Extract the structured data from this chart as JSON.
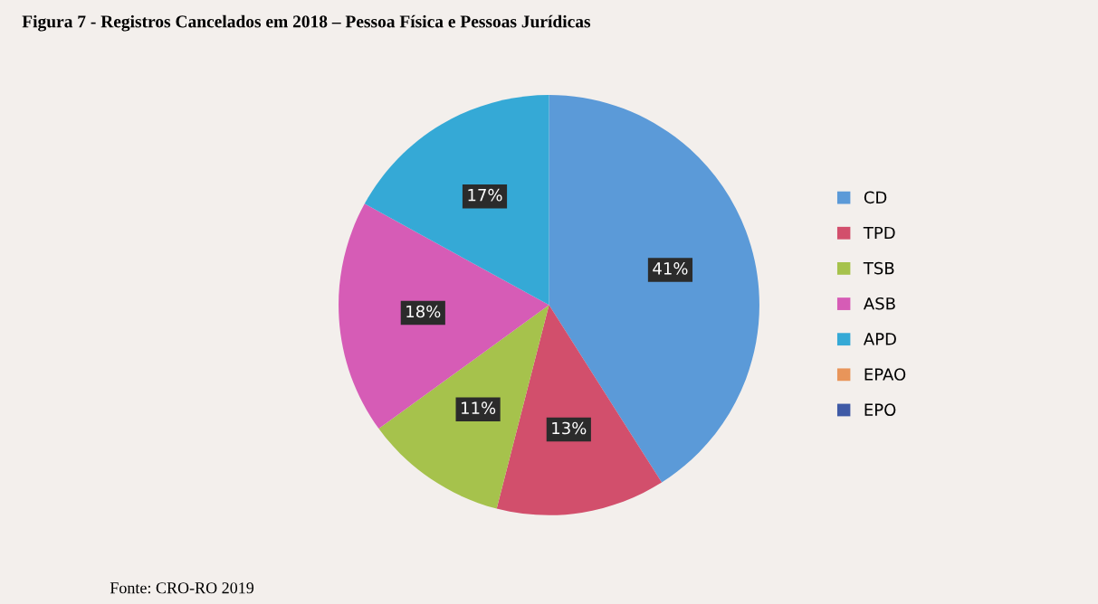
{
  "chart_data": {
    "type": "pie",
    "title": "Figura 7 - Registros Cancelados em 2018 – Pessoa Física e Pessoas Jurídicas",
    "categories": [
      "CD",
      "TPD",
      "TSB",
      "ASB",
      "APD",
      "EPAO",
      "EPO"
    ],
    "values": [
      41,
      13,
      11,
      18,
      17,
      0,
      0
    ],
    "value_labels": [
      "41%",
      "13%",
      "11%",
      "18%",
      "17%",
      null,
      null
    ],
    "colors": [
      "#5b9ad8",
      "#d24f6c",
      "#a6c24c",
      "#d65cb6",
      "#35a9d6",
      "#e8955a",
      "#3f5aa6"
    ],
    "legend": "right",
    "annotations": [
      "Fonte: CRO-RO 2019"
    ]
  }
}
